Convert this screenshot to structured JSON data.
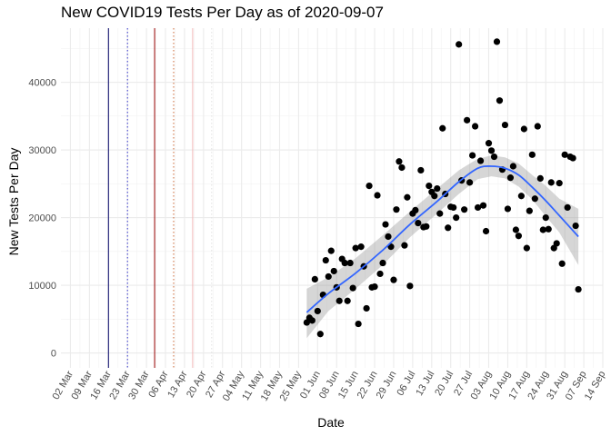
{
  "chart_data": {
    "type": "scatter",
    "title": "New COVID19 Tests Per Day as of 2020-09-07",
    "xlabel": "Date",
    "ylabel": "New Tests Per Day",
    "x_tick_labels": [
      "02 Mar",
      "09 Mar",
      "16 Mar",
      "23 Mar",
      "30 Mar",
      "06 Apr",
      "13 Apr",
      "20 Apr",
      "27 Apr",
      "04 May",
      "11 May",
      "18 May",
      "25 May",
      "01 Jun",
      "08 Jun",
      "15 Jun",
      "22 Jun",
      "29 Jun",
      "06 Jul",
      "13 Jul",
      "20 Jul",
      "27 Jul",
      "03 Aug",
      "10 Aug",
      "17 Aug",
      "24 Aug",
      "31 Aug",
      "07 Sep",
      "14 Sep"
    ],
    "x_tick_day": [
      0,
      7,
      14,
      21,
      28,
      35,
      42,
      49,
      56,
      63,
      70,
      77,
      84,
      91,
      98,
      105,
      112,
      119,
      126,
      133,
      140,
      147,
      154,
      161,
      168,
      175,
      182,
      189,
      196
    ],
    "y_ticks": [
      0,
      10000,
      20000,
      30000,
      40000
    ],
    "y_tick_labels": [
      "0",
      "10000",
      "20000",
      "30000",
      "40000"
    ],
    "xlim_day": [
      -3.5,
      196
    ],
    "ylim": [
      -2200,
      48000
    ],
    "grid": true,
    "x_day_origin": "2020-03-02",
    "vertical_lines": [
      {
        "day": 14,
        "color": "#000066",
        "style": "solid"
      },
      {
        "day": 21,
        "color": "#3333cc",
        "style": "dotted"
      },
      {
        "day": 31,
        "color": "#990000",
        "style": "solid"
      },
      {
        "day": 38,
        "color": "#cc6633",
        "style": "dotted"
      },
      {
        "day": 45,
        "color": "#f2b8b8",
        "style": "solid"
      },
      {
        "day": 52,
        "color": "#e0e0e0",
        "style": "dotted"
      }
    ],
    "series": [
      {
        "name": "New Tests Per Day",
        "color": "#000000",
        "points": [
          [
            87,
            4500
          ],
          [
            88,
            5200
          ],
          [
            89,
            4800
          ],
          [
            90,
            10900
          ],
          [
            91,
            6200
          ],
          [
            92,
            2800
          ],
          [
            93,
            8600
          ],
          [
            94,
            13700
          ],
          [
            95,
            11300
          ],
          [
            96,
            15100
          ],
          [
            97,
            12100
          ],
          [
            98,
            9700
          ],
          [
            99,
            7700
          ],
          [
            100,
            13900
          ],
          [
            101,
            13300
          ],
          [
            102,
            7700
          ],
          [
            103,
            13300
          ],
          [
            104,
            9600
          ],
          [
            105,
            15500
          ],
          [
            106,
            4300
          ],
          [
            107,
            15700
          ],
          [
            108,
            12800
          ],
          [
            109,
            6600
          ],
          [
            110,
            24700
          ],
          [
            111,
            9700
          ],
          [
            112,
            9800
          ],
          [
            113,
            23300
          ],
          [
            114,
            11700
          ],
          [
            115,
            13300
          ],
          [
            116,
            19000
          ],
          [
            117,
            17200
          ],
          [
            118,
            15700
          ],
          [
            119,
            10800
          ],
          [
            120,
            21200
          ],
          [
            121,
            28300
          ],
          [
            122,
            27400
          ],
          [
            123,
            15900
          ],
          [
            124,
            23000
          ],
          [
            125,
            9900
          ],
          [
            126,
            20600
          ],
          [
            127,
            21100
          ],
          [
            128,
            19200
          ],
          [
            129,
            27000
          ],
          [
            130,
            18600
          ],
          [
            131,
            18700
          ],
          [
            132,
            24700
          ],
          [
            133,
            23800
          ],
          [
            134,
            23200
          ],
          [
            135,
            24300
          ],
          [
            136,
            20600
          ],
          [
            137,
            33200
          ],
          [
            138,
            23500
          ],
          [
            139,
            18500
          ],
          [
            140,
            21600
          ],
          [
            141,
            21500
          ],
          [
            142,
            20000
          ],
          [
            143,
            45600
          ],
          [
            144,
            25500
          ],
          [
            145,
            21200
          ],
          [
            146,
            34400
          ],
          [
            147,
            25200
          ],
          [
            148,
            29200
          ],
          [
            149,
            33500
          ],
          [
            150,
            21500
          ],
          [
            151,
            28400
          ],
          [
            152,
            21800
          ],
          [
            153,
            18000
          ],
          [
            154,
            31000
          ],
          [
            155,
            29900
          ],
          [
            156,
            29000
          ],
          [
            157,
            46000
          ],
          [
            158,
            37300
          ],
          [
            159,
            27100
          ],
          [
            160,
            33700
          ],
          [
            161,
            21300
          ],
          [
            162,
            25900
          ],
          [
            163,
            27600
          ],
          [
            164,
            18200
          ],
          [
            165,
            17300
          ],
          [
            166,
            23200
          ],
          [
            167,
            33100
          ],
          [
            168,
            15500
          ],
          [
            169,
            21000
          ],
          [
            170,
            29300
          ],
          [
            171,
            22800
          ],
          [
            172,
            33500
          ],
          [
            173,
            25800
          ],
          [
            174,
            18200
          ],
          [
            175,
            20000
          ],
          [
            176,
            18300
          ],
          [
            177,
            25200
          ],
          [
            178,
            15500
          ],
          [
            179,
            16200
          ],
          [
            180,
            25100
          ],
          [
            181,
            13200
          ],
          [
            182,
            29300
          ],
          [
            183,
            21500
          ],
          [
            184,
            29000
          ],
          [
            185,
            28800
          ],
          [
            186,
            18800
          ],
          [
            187,
            9400
          ]
        ]
      },
      {
        "name": "loess smooth",
        "color": "#3366ff",
        "points": [
          [
            87,
            6000
          ],
          [
            95,
            8800
          ],
          [
            105,
            11800
          ],
          [
            115,
            15200
          ],
          [
            125,
            19000
          ],
          [
            135,
            22400
          ],
          [
            143,
            25300
          ],
          [
            150,
            27300
          ],
          [
            155,
            27600
          ],
          [
            160,
            27300
          ],
          [
            165,
            26300
          ],
          [
            170,
            24500
          ],
          [
            175,
            22500
          ],
          [
            180,
            20300
          ],
          [
            187,
            17200
          ]
        ],
        "band_upper": [
          [
            87,
            9500
          ],
          [
            95,
            11200
          ],
          [
            105,
            14000
          ],
          [
            115,
            17400
          ],
          [
            125,
            20900
          ],
          [
            135,
            24300
          ],
          [
            143,
            27000
          ],
          [
            150,
            28700
          ],
          [
            155,
            29200
          ],
          [
            160,
            28900
          ],
          [
            165,
            28000
          ],
          [
            170,
            26300
          ],
          [
            175,
            24700
          ],
          [
            180,
            22800
          ],
          [
            187,
            21300
          ]
        ],
        "band_lower": [
          [
            87,
            2200
          ],
          [
            95,
            6200
          ],
          [
            105,
            9500
          ],
          [
            115,
            13000
          ],
          [
            125,
            17100
          ],
          [
            135,
            20600
          ],
          [
            143,
            23500
          ],
          [
            150,
            25700
          ],
          [
            155,
            26100
          ],
          [
            160,
            25800
          ],
          [
            165,
            24600
          ],
          [
            170,
            22700
          ],
          [
            175,
            20200
          ],
          [
            180,
            17800
          ],
          [
            187,
            13000
          ]
        ]
      }
    ]
  }
}
